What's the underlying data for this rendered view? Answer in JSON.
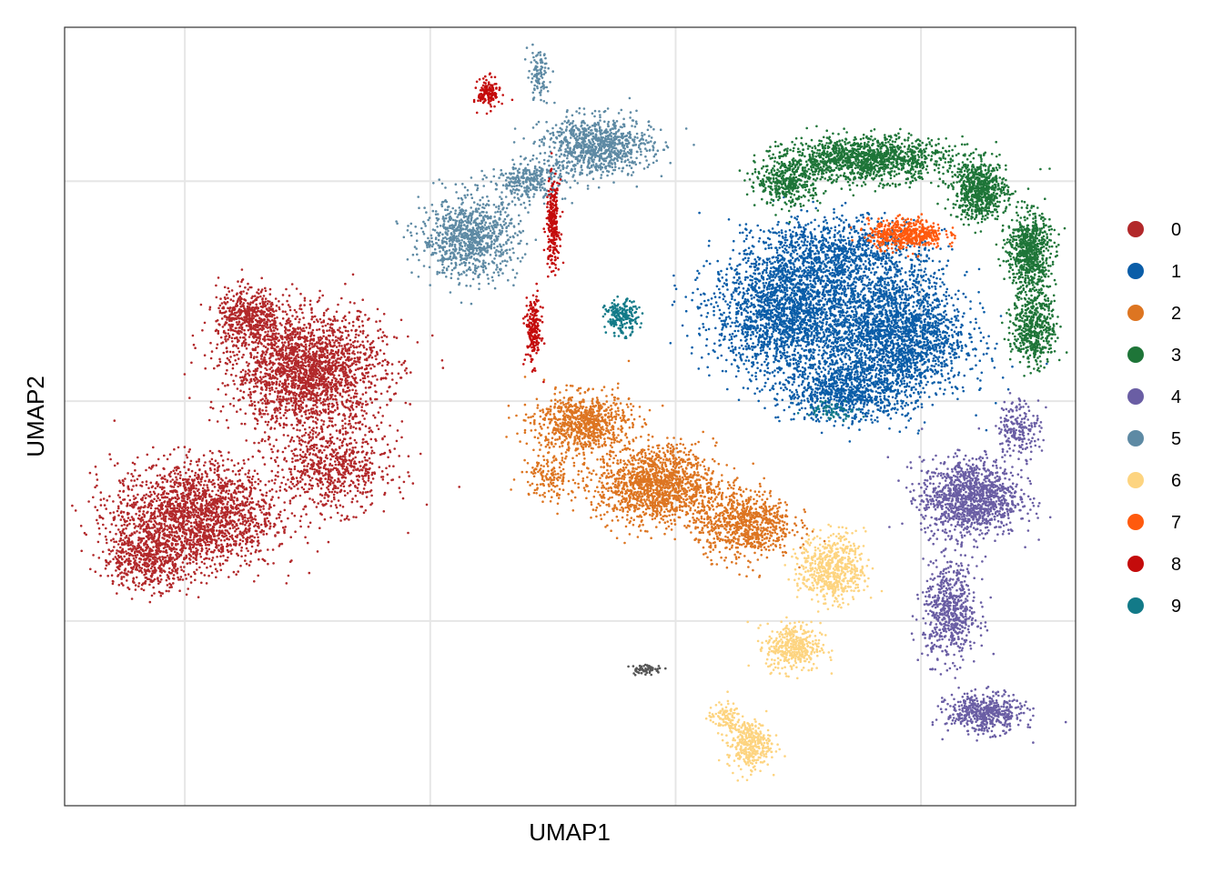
{
  "chart_data": {
    "type": "scatter",
    "title": "",
    "xlabel": "UMAP1",
    "ylabel": "UMAP2",
    "x_tick_labels_shown": false,
    "y_tick_labels_shown": false,
    "grid": true,
    "grid_x_values": [
      -10,
      -5,
      0,
      5
    ],
    "grid_y_values": [
      5,
      0,
      -5
    ],
    "xlim": [
      -12.45,
      8.15
    ],
    "ylim": [
      -9.2,
      8.5
    ],
    "legend_position": "right",
    "legend": [
      {
        "label": "0",
        "color": "#B2282A"
      },
      {
        "label": "1",
        "color": "#0A5DA8"
      },
      {
        "label": "2",
        "color": "#DD7521"
      },
      {
        "label": "3",
        "color": "#1E7538"
      },
      {
        "label": "4",
        "color": "#6A5EA4"
      },
      {
        "label": "5",
        "color": "#5E8AA4"
      },
      {
        "label": "6",
        "color": "#FDD480"
      },
      {
        "label": "7",
        "color": "#FF5A0E"
      },
      {
        "label": "8",
        "color": "#C40B0B"
      },
      {
        "label": "9",
        "color": "#127A88"
      }
    ],
    "clusters": [
      {
        "name": "0",
        "color": "#B2282A",
        "blobs": [
          {
            "x": -7.5,
            "y": 0.7,
            "sx": 1.4,
            "sy": 1.2,
            "n": 2200
          },
          {
            "x": -9.8,
            "y": -2.6,
            "sx": 1.5,
            "sy": 1.1,
            "n": 2000
          },
          {
            "x": -8.7,
            "y": 1.9,
            "sx": 0.6,
            "sy": 0.6,
            "n": 500
          },
          {
            "x": -7.0,
            "y": -1.5,
            "sx": 1.1,
            "sy": 0.9,
            "n": 700
          },
          {
            "x": -10.8,
            "y": -3.6,
            "sx": 0.8,
            "sy": 0.6,
            "n": 500
          }
        ]
      },
      {
        "name": "1",
        "color": "#0A5DA8",
        "blobs": [
          {
            "x": 2.3,
            "y": 2.0,
            "sx": 1.4,
            "sy": 1.3,
            "n": 2200
          },
          {
            "x": 4.5,
            "y": 1.5,
            "sx": 1.3,
            "sy": 1.3,
            "n": 2200
          },
          {
            "x": 3.3,
            "y": 3.3,
            "sx": 1.6,
            "sy": 0.8,
            "n": 1000
          },
          {
            "x": 3.5,
            "y": 0.2,
            "sx": 1.2,
            "sy": 0.6,
            "n": 800
          }
        ]
      },
      {
        "name": "2",
        "color": "#DD7521",
        "blobs": [
          {
            "x": -1.9,
            "y": -0.5,
            "sx": 0.9,
            "sy": 0.6,
            "n": 800
          },
          {
            "x": -0.4,
            "y": -1.9,
            "sx": 1.1,
            "sy": 0.8,
            "n": 1400
          },
          {
            "x": 1.4,
            "y": -2.8,
            "sx": 0.9,
            "sy": 0.7,
            "n": 800
          },
          {
            "x": -2.6,
            "y": -1.7,
            "sx": 0.5,
            "sy": 0.5,
            "n": 150
          }
        ]
      },
      {
        "name": "3",
        "color": "#1E7538",
        "blobs": [
          {
            "x": 3.9,
            "y": 5.5,
            "sx": 1.5,
            "sy": 0.45,
            "n": 1300
          },
          {
            "x": 2.3,
            "y": 5.0,
            "sx": 0.6,
            "sy": 0.5,
            "n": 400
          },
          {
            "x": 6.2,
            "y": 4.8,
            "sx": 0.5,
            "sy": 0.6,
            "n": 700
          },
          {
            "x": 7.2,
            "y": 3.4,
            "sx": 0.4,
            "sy": 0.8,
            "n": 700
          },
          {
            "x": 7.3,
            "y": 1.7,
            "sx": 0.4,
            "sy": 0.8,
            "n": 500
          }
        ]
      },
      {
        "name": "4",
        "color": "#6A5EA4",
        "blobs": [
          {
            "x": 6.0,
            "y": -2.2,
            "sx": 0.9,
            "sy": 0.8,
            "n": 1200
          },
          {
            "x": 5.6,
            "y": -4.8,
            "sx": 0.5,
            "sy": 1.0,
            "n": 600
          },
          {
            "x": 6.3,
            "y": -7.1,
            "sx": 0.7,
            "sy": 0.4,
            "n": 500
          },
          {
            "x": 7.0,
            "y": -0.6,
            "sx": 0.4,
            "sy": 0.6,
            "n": 200
          }
        ]
      },
      {
        "name": "5",
        "color": "#5E8AA4",
        "blobs": [
          {
            "x": -4.2,
            "y": 3.7,
            "sx": 0.9,
            "sy": 0.8,
            "n": 900
          },
          {
            "x": -1.6,
            "y": 5.8,
            "sx": 1.0,
            "sy": 0.6,
            "n": 900
          },
          {
            "x": -3.0,
            "y": 5.0,
            "sx": 0.7,
            "sy": 0.4,
            "n": 300
          },
          {
            "x": -2.8,
            "y": 7.4,
            "sx": 0.2,
            "sy": 0.5,
            "n": 100
          }
        ]
      },
      {
        "name": "6",
        "color": "#FDD480",
        "blobs": [
          {
            "x": 3.2,
            "y": -3.8,
            "sx": 0.6,
            "sy": 0.7,
            "n": 600
          },
          {
            "x": 2.4,
            "y": -5.6,
            "sx": 0.5,
            "sy": 0.5,
            "n": 400
          },
          {
            "x": 1.5,
            "y": -7.8,
            "sx": 0.4,
            "sy": 0.5,
            "n": 350
          },
          {
            "x": 1.0,
            "y": -7.2,
            "sx": 0.3,
            "sy": 0.3,
            "n": 100
          }
        ]
      },
      {
        "name": "7",
        "color": "#FF5A0E",
        "blobs": [
          {
            "x": 4.7,
            "y": 3.8,
            "sx": 0.7,
            "sy": 0.3,
            "n": 500
          }
        ]
      },
      {
        "name": "8",
        "color": "#C40B0B",
        "blobs": [
          {
            "x": -2.5,
            "y": 4.0,
            "sx": 0.12,
            "sy": 0.9,
            "n": 250
          },
          {
            "x": -2.9,
            "y": 1.6,
            "sx": 0.15,
            "sy": 0.7,
            "n": 200
          },
          {
            "x": -3.8,
            "y": 7.0,
            "sx": 0.2,
            "sy": 0.3,
            "n": 150
          }
        ]
      },
      {
        "name": "9",
        "color": "#127A88",
        "blobs": [
          {
            "x": -1.1,
            "y": 1.9,
            "sx": 0.3,
            "sy": 0.35,
            "n": 200
          },
          {
            "x": 3.2,
            "y": -0.2,
            "sx": 0.5,
            "sy": 0.2,
            "n": 60
          }
        ]
      },
      {
        "name": "",
        "color": "#555555",
        "blobs": [
          {
            "x": -0.6,
            "y": -6.1,
            "sx": 0.3,
            "sy": 0.1,
            "n": 60
          }
        ]
      }
    ]
  }
}
